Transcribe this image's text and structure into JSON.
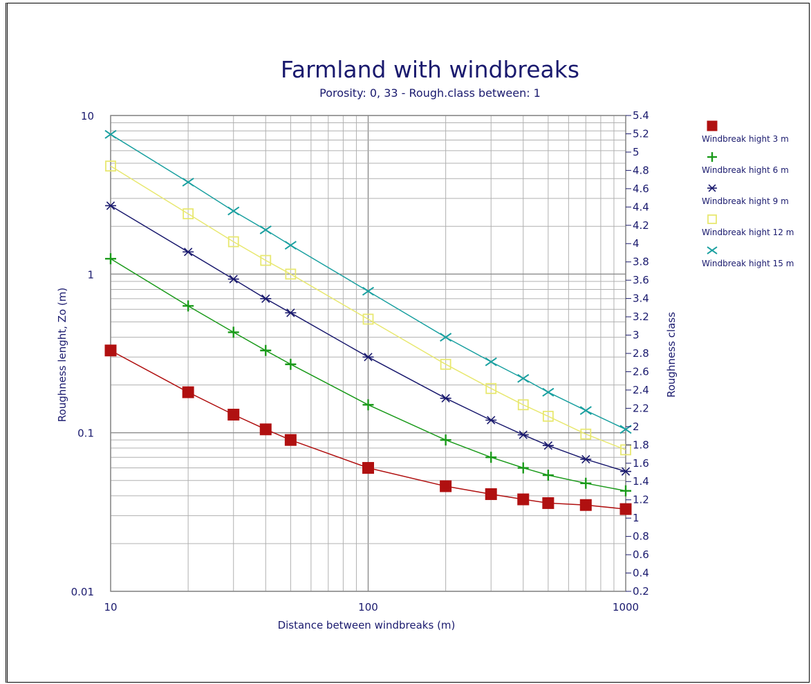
{
  "chart_data": {
    "type": "line",
    "title": "Farmland with windbreaks",
    "subtitle": "Porosity: 0, 33 - Rough.class between: 1",
    "xlabel": "Distance between windbreaks (m)",
    "ylabel": "Roughness lenght, Zo (m)",
    "y2label": "Roughness class",
    "xscale": "log",
    "yscale": "log",
    "xlim": [
      10,
      1000
    ],
    "ylim": [
      0.01,
      10
    ],
    "y2lim": [
      0.2,
      5.4
    ],
    "grid": true,
    "legend_position": "right",
    "x_ticks": [
      "10",
      "100",
      "1000"
    ],
    "y_ticks": [
      "0.01",
      "0.1",
      "1",
      "10"
    ],
    "y2_ticks": [
      "0.2",
      "0.4",
      "0.6",
      "0.8",
      "1",
      "1.2",
      "1.4",
      "1.6",
      "1.8",
      "2",
      "2.2",
      "2.4",
      "2.6",
      "2.8",
      "3",
      "3.2",
      "3.4",
      "3.6",
      "3.8",
      "4",
      "4.2",
      "4.4",
      "4.6",
      "4.8",
      "5",
      "5.2",
      "5.4"
    ],
    "x": [
      10,
      20,
      30,
      40,
      50,
      100,
      200,
      300,
      400,
      500,
      700,
      1000
    ],
    "series": [
      {
        "name": "Windbreak hight 3 m",
        "color": "#b01010",
        "marker": "square-filled",
        "values": [
          0.33,
          0.18,
          0.13,
          0.105,
          0.09,
          0.06,
          0.046,
          0.041,
          0.038,
          0.036,
          0.035,
          0.033
        ]
      },
      {
        "name": "Windbreak hight 6 m",
        "color": "#1a9a1a",
        "marker": "plus",
        "values": [
          1.25,
          0.63,
          0.43,
          0.33,
          0.27,
          0.15,
          0.09,
          0.07,
          0.06,
          0.054,
          0.048,
          0.043
        ]
      },
      {
        "name": "Windbreak hight 9 m",
        "color": "#1a1a6e",
        "marker": "asterisk",
        "values": [
          2.7,
          1.38,
          0.93,
          0.7,
          0.57,
          0.3,
          0.165,
          0.12,
          0.097,
          0.083,
          0.068,
          0.057
        ]
      },
      {
        "name": "Windbreak hight 12 m",
        "color": "#e8e870",
        "marker": "square-open",
        "values": [
          4.8,
          2.4,
          1.6,
          1.22,
          1.0,
          0.52,
          0.27,
          0.19,
          0.15,
          0.127,
          0.098,
          0.078
        ]
      },
      {
        "name": "Windbreak hight 15 m",
        "color": "#1aa0a0",
        "marker": "x",
        "values": [
          7.6,
          3.8,
          2.5,
          1.9,
          1.52,
          0.78,
          0.4,
          0.28,
          0.22,
          0.18,
          0.138,
          0.105
        ]
      }
    ]
  }
}
